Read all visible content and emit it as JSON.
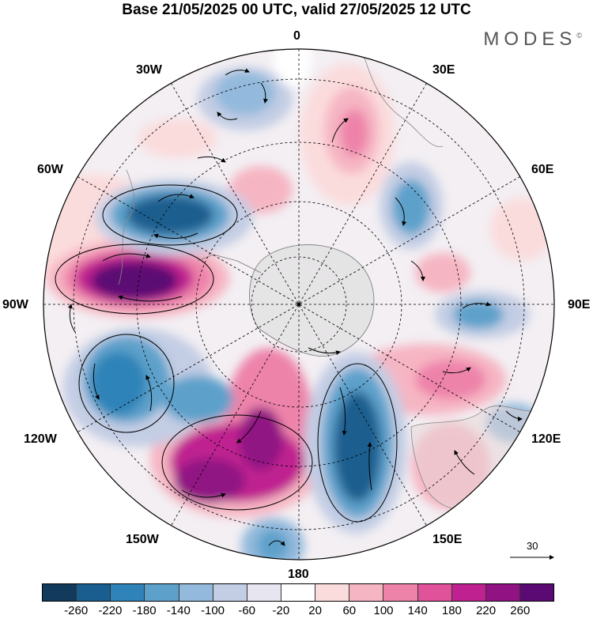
{
  "title": "Base 21/05/2025 00 UTC, valid 27/05/2025 12 UTC",
  "brand": "MODES",
  "brand_mark": "©",
  "longitude_labels": {
    "lon_0": "0",
    "lon_30e": "30E",
    "lon_60e": "60E",
    "lon_90e": "90E",
    "lon_120e": "120E",
    "lon_150e": "150E",
    "lon_180": "180",
    "lon_150w": "150W",
    "lon_120w": "120W",
    "lon_90w": "90W",
    "lon_60w": "60W",
    "lon_30w": "30W"
  },
  "reference_vector_label": "30",
  "colorbar": {
    "colors": [
      "#123a5c",
      "#1a5e8f",
      "#2f83b8",
      "#5da1cb",
      "#93b9dc",
      "#c3cde4",
      "#e6e5f0",
      "#ffffff",
      "#fbdcdd",
      "#f6b5c3",
      "#ee83aa",
      "#e0529a",
      "#bf2290",
      "#901283",
      "#5b0a73"
    ],
    "tick_labels": [
      "-260",
      "-220",
      "-180",
      "-140",
      "-100",
      "-60",
      "-20",
      "20",
      "60",
      "100",
      "140",
      "180",
      "220",
      "260"
    ]
  }
}
